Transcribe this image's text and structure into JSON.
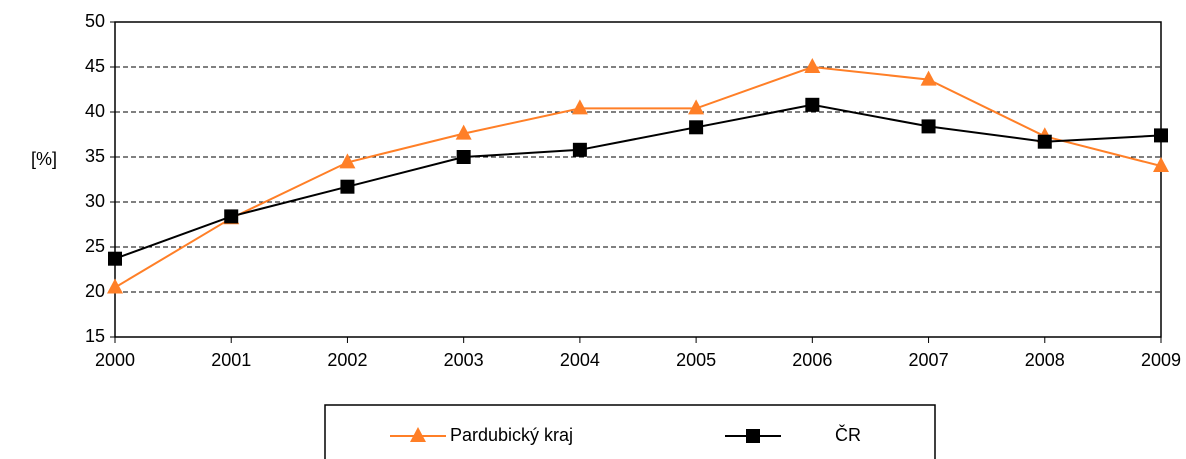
{
  "chart_data": {
    "type": "line",
    "y_label": "[%]",
    "x": [
      2000,
      2001,
      2002,
      2003,
      2004,
      2005,
      2006,
      2007,
      2008,
      2009
    ],
    "xlim": [
      2000,
      2009
    ],
    "xticks": [
      2000,
      2001,
      2002,
      2003,
      2004,
      2005,
      2006,
      2007,
      2008,
      2009
    ],
    "ylim": [
      15,
      50
    ],
    "yticks": [
      15,
      20,
      25,
      30,
      35,
      40,
      45,
      50
    ],
    "grid": true,
    "series": [
      {
        "name": "Pardubický kraj",
        "color": "#ff7f27",
        "marker": "triangle",
        "values": [
          20.5,
          28.2,
          34.4,
          37.6,
          40.4,
          40.4,
          45.0,
          43.6,
          37.3,
          34.0
        ]
      },
      {
        "name": "ČR",
        "color": "#000000",
        "marker": "square",
        "values": [
          23.7,
          28.4,
          31.7,
          35.0,
          35.8,
          38.3,
          40.8,
          38.4,
          36.7,
          37.4
        ]
      }
    ]
  }
}
